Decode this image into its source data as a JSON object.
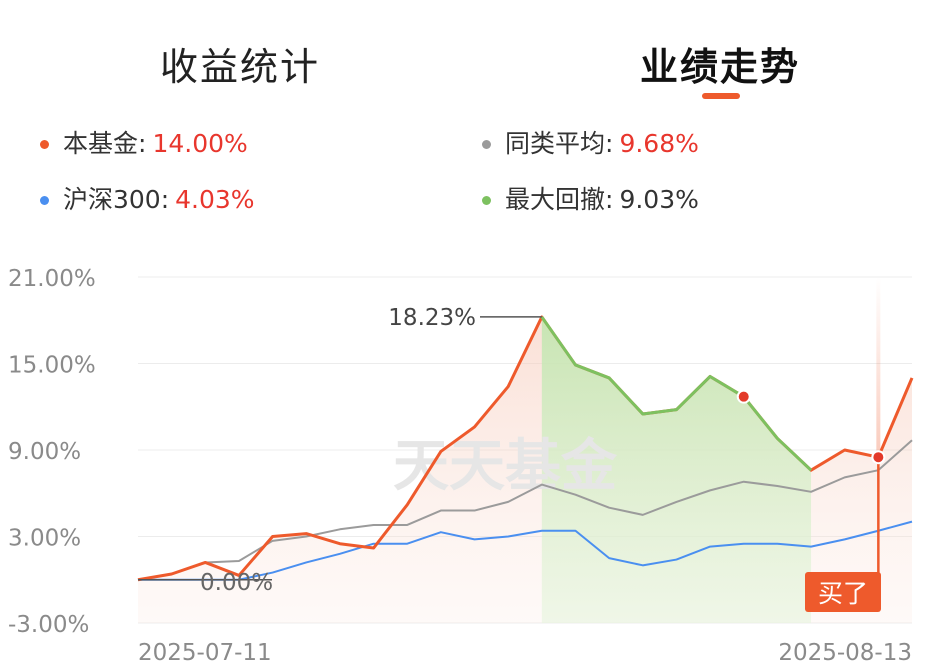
{
  "tabs": [
    {
      "label": "收益统计",
      "active": false
    },
    {
      "label": "业绩走势",
      "active": true
    }
  ],
  "accent_color": "#ee5a2c",
  "legend": [
    {
      "label": "本基金:",
      "value": "14.00%",
      "color": "#ee5a2c",
      "value_color": "#e8362d"
    },
    {
      "label": "同类平均:",
      "value": "9.68%",
      "color": "#9b9b9b",
      "value_color": "#e8362d"
    },
    {
      "label": "沪深300:",
      "value": "4.03%",
      "color": "#4a8ff0",
      "value_color": "#e8362d"
    },
    {
      "label": "最大回撤:",
      "value": "9.03%",
      "color": "#7dc160",
      "value_color": "#333333"
    }
  ],
  "watermark": "天天基金",
  "chart_data": {
    "type": "line",
    "y_ticks": [
      "21.00%",
      "15.00%",
      "9.00%",
      "3.00%",
      "-3.00%"
    ],
    "ylim": [
      -3,
      21
    ],
    "x_tick_labels": [
      "2025-07-11",
      "2025-08-13"
    ],
    "grid": true,
    "series": [
      {
        "name": "本基金",
        "color": "#ee5a2c",
        "values": [
          0,
          0.4,
          1.2,
          0.3,
          3.0,
          3.2,
          2.5,
          2.2,
          5.2,
          8.9,
          10.6,
          13.4,
          18.23,
          14.9,
          14.0,
          11.5,
          11.8,
          14.1,
          12.7,
          9.8,
          7.6,
          9.0,
          8.5,
          14.0
        ]
      },
      {
        "name": "同类平均",
        "color": "#9b9b9b",
        "values": [
          0,
          0.4,
          1.2,
          1.3,
          2.7,
          3.0,
          3.5,
          3.8,
          3.8,
          4.8,
          4.8,
          5.4,
          6.6,
          5.9,
          5.0,
          4.5,
          5.4,
          6.2,
          6.8,
          6.5,
          6.1,
          7.1,
          7.6,
          9.68
        ]
      },
      {
        "name": "沪深300",
        "color": "#4a8ff0",
        "values": [
          0,
          0.0,
          0.0,
          0.0,
          0.5,
          1.2,
          1.8,
          2.5,
          2.5,
          3.3,
          2.8,
          3.0,
          3.4,
          3.4,
          1.5,
          1.0,
          1.4,
          2.3,
          2.5,
          2.5,
          2.3,
          2.8,
          3.4,
          4.03
        ]
      }
    ],
    "drawdown": {
      "start_index": 12,
      "end_index": 20,
      "color": "#7dc160"
    },
    "annotations": [
      {
        "label": "18.23%",
        "index": 12,
        "value": 18.23
      },
      {
        "label": "0.00%",
        "index": 0,
        "value": 0
      }
    ],
    "marker_point": {
      "index": 18,
      "value": 12.7
    },
    "buy_marker": {
      "index": 22,
      "value": 8.5,
      "label": "买了"
    }
  }
}
